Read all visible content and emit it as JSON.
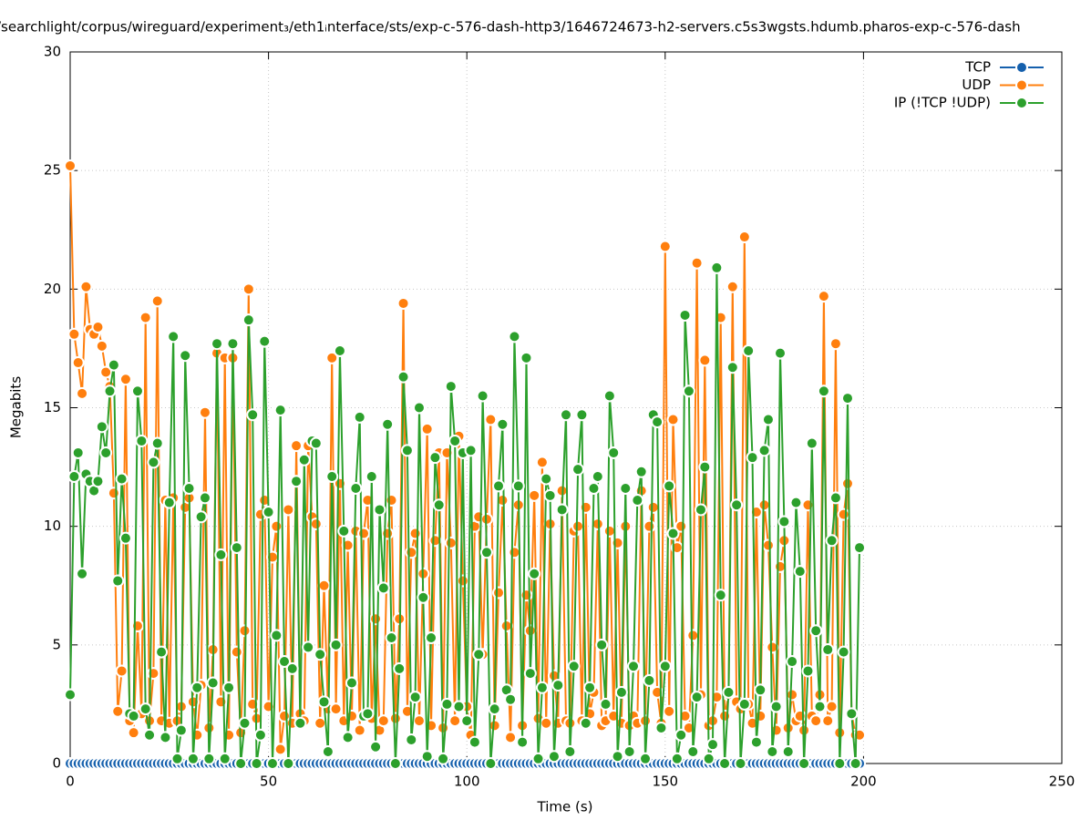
{
  "chart_data": {
    "type": "line",
    "title": "/searchlight/corpus/wireguard/experiment₃/eth1ᵢnterface/sts/exp-c-576-dash-http3/1646724673-h2-servers.c5s3wgsts.hdumb.pharos-exp-c-576-dash",
    "x_label": "Time (s)",
    "y_label": "Megabits",
    "xlim": [
      0,
      250
    ],
    "xticks": [
      0,
      50,
      100,
      150,
      200,
      250
    ],
    "ylim": [
      0,
      30
    ],
    "yticks": [
      0,
      5,
      10,
      15,
      20,
      25,
      30
    ],
    "grid": true,
    "legend": "top-right",
    "x": [
      0,
      1,
      2,
      3,
      4,
      5,
      6,
      7,
      8,
      9,
      10,
      11,
      12,
      13,
      14,
      15,
      16,
      17,
      18,
      19,
      20,
      21,
      22,
      23,
      24,
      25,
      26,
      27,
      28,
      29,
      30,
      31,
      32,
      33,
      34,
      35,
      36,
      37,
      38,
      39,
      40,
      41,
      42,
      43,
      44,
      45,
      46,
      47,
      48,
      49,
      50,
      51,
      52,
      53,
      54,
      55,
      56,
      57,
      58,
      59,
      60,
      61,
      62,
      63,
      64,
      65,
      66,
      67,
      68,
      69,
      70,
      71,
      72,
      73,
      74,
      75,
      76,
      77,
      78,
      79,
      80,
      81,
      82,
      83,
      84,
      85,
      86,
      87,
      88,
      89,
      90,
      91,
      92,
      93,
      94,
      95,
      96,
      97,
      98,
      99,
      100,
      101,
      102,
      103,
      104,
      105,
      106,
      107,
      108,
      109,
      110,
      111,
      112,
      113,
      114,
      115,
      116,
      117,
      118,
      119,
      120,
      121,
      122,
      123,
      124,
      125,
      126,
      127,
      128,
      129,
      130,
      131,
      132,
      133,
      134,
      135,
      136,
      137,
      138,
      139,
      140,
      141,
      142,
      143,
      144,
      145,
      146,
      147,
      148,
      149,
      150,
      151,
      152,
      153,
      154,
      155,
      156,
      157,
      158,
      159,
      160,
      161,
      162,
      163,
      164,
      165,
      166,
      167,
      168,
      169,
      170,
      171,
      172,
      173,
      174,
      175,
      176,
      177,
      178,
      179,
      180,
      181,
      182,
      183,
      184,
      185,
      186,
      187,
      188,
      189,
      190,
      191,
      192,
      193,
      194,
      195,
      196,
      197,
      198,
      199
    ],
    "series": [
      {
        "name": "TCP",
        "color": "#1560ad",
        "values": [
          0,
          0,
          0,
          0,
          0,
          0,
          0,
          0,
          0,
          0,
          0,
          0,
          0,
          0,
          0,
          0,
          0,
          0,
          0,
          0,
          0,
          0,
          0,
          0,
          0,
          0,
          0,
          0,
          0,
          0,
          0,
          0,
          0,
          0,
          0,
          0,
          0,
          0,
          0,
          0,
          0,
          0,
          0,
          0,
          0,
          0,
          0,
          0,
          0,
          0,
          0,
          0,
          0,
          0,
          0,
          0,
          0,
          0,
          0,
          0,
          0,
          0,
          0,
          0,
          0,
          0,
          0,
          0,
          0,
          0,
          0,
          0,
          0,
          0,
          0,
          0,
          0,
          0,
          0,
          0,
          0,
          0,
          0,
          0,
          0,
          0,
          0,
          0,
          0,
          0,
          0,
          0,
          0,
          0,
          0,
          0,
          0,
          0,
          0,
          0,
          0,
          0,
          0,
          0,
          0,
          0,
          0,
          0,
          0,
          0,
          0,
          0,
          0,
          0,
          0,
          0,
          0,
          0,
          0,
          0,
          0,
          0,
          0,
          0,
          0,
          0,
          0,
          0,
          0,
          0,
          0,
          0,
          0,
          0,
          0,
          0,
          0,
          0,
          0,
          0,
          0,
          0,
          0,
          0,
          0,
          0,
          0,
          0,
          0,
          0,
          0,
          0,
          0,
          0,
          0,
          0,
          0,
          0,
          0,
          0,
          0,
          0,
          0,
          0,
          0,
          0,
          0,
          0,
          0,
          0,
          0,
          0,
          0,
          0,
          0,
          0,
          0,
          0,
          0,
          0,
          0,
          0,
          0,
          0,
          0,
          0,
          0,
          0,
          0,
          0,
          0,
          0,
          0,
          0,
          0,
          0,
          0,
          0,
          0,
          0
        ]
      },
      {
        "name": "UDP",
        "color": "#ff7f0e",
        "values": [
          25.2,
          18.1,
          16.9,
          15.6,
          20.1,
          18.3,
          18.1,
          18.4,
          17.6,
          16.5,
          15.9,
          11.4,
          2.2,
          3.9,
          16.2,
          1.8,
          1.3,
          5.8,
          2.1,
          18.8,
          1.8,
          3.8,
          19.5,
          1.8,
          11.1,
          1.7,
          11.2,
          1.8,
          2.4,
          10.8,
          11.2,
          2.6,
          1.2,
          3.3,
          14.8,
          1.5,
          4.8,
          17.3,
          2.6,
          17.1,
          1.2,
          17.1,
          4.7,
          1.3,
          5.6,
          20.0,
          2.5,
          1.9,
          10.5,
          11.1,
          2.4,
          8.7,
          10.0,
          0.6,
          2.0,
          10.7,
          1.7,
          13.4,
          2.1,
          1.8,
          13.4,
          10.4,
          10.1,
          1.7,
          7.5,
          2.3,
          17.1,
          2.3,
          11.8,
          1.8,
          9.2,
          2.0,
          9.8,
          1.4,
          9.7,
          11.1,
          1.9,
          6.1,
          1.4,
          1.8,
          9.7,
          11.1,
          1.9,
          6.1,
          19.4,
          2.2,
          8.9,
          9.7,
          1.8,
          8.0,
          14.1,
          1.6,
          9.4,
          13.1,
          1.5,
          13.1,
          9.3,
          1.8,
          13.8,
          7.7,
          2.4,
          1.2,
          10.0,
          10.4,
          4.6,
          10.3,
          14.5,
          1.6,
          7.2,
          11.1,
          5.8,
          1.1,
          8.9,
          10.9,
          1.6,
          7.1,
          5.6,
          11.3,
          1.9,
          12.7,
          1.7,
          10.1,
          3.7,
          1.7,
          11.5,
          1.8,
          1.7,
          9.8,
          10.0,
          1.8,
          10.8,
          2.1,
          3.0,
          10.1,
          1.6,
          1.8,
          9.8,
          2.0,
          9.3,
          1.7,
          10.0,
          1.6,
          2.0,
          1.7,
          11.5,
          1.8,
          10.0,
          10.8,
          3.0,
          1.7,
          21.8,
          2.2,
          14.5,
          9.1,
          10.0,
          2.0,
          1.5,
          5.4,
          21.1,
          2.9,
          17.0,
          1.6,
          1.8,
          2.8,
          18.8,
          2.0,
          2.9,
          20.1,
          2.6,
          2.3,
          22.2,
          2.5,
          1.7,
          10.6,
          2.0,
          10.9,
          9.2,
          4.9,
          1.4,
          8.3,
          9.4,
          1.5,
          2.9,
          1.8,
          2.0,
          1.4,
          10.9,
          2.0,
          1.8,
          2.9,
          19.7,
          1.8,
          2.4,
          17.7,
          1.3,
          10.5,
          11.8,
          2.1,
          1.2,
          1.2
        ]
      },
      {
        "name": "IP (!TCP  !UDP)",
        "color": "#2ca02c",
        "values": [
          2.9,
          12.1,
          13.1,
          8.0,
          12.2,
          11.9,
          11.5,
          11.9,
          14.2,
          13.1,
          15.7,
          16.8,
          7.7,
          12.0,
          9.5,
          2.1,
          2.0,
          15.7,
          13.6,
          2.3,
          1.2,
          12.7,
          13.5,
          4.7,
          1.1,
          11.0,
          18.0,
          0.2,
          1.4,
          17.2,
          11.6,
          0.2,
          3.2,
          10.4,
          11.2,
          0.2,
          3.4,
          17.7,
          8.8,
          0.2,
          3.2,
          17.7,
          9.1,
          0.0,
          1.7,
          18.7,
          14.7,
          0.0,
          1.2,
          17.8,
          10.6,
          0.0,
          5.4,
          14.9,
          4.3,
          0.0,
          4.0,
          11.9,
          1.7,
          12.8,
          4.9,
          13.6,
          13.5,
          4.6,
          2.6,
          0.5,
          12.1,
          5.0,
          17.4,
          9.8,
          1.1,
          3.4,
          11.6,
          14.6,
          2.0,
          2.1,
          12.1,
          0.7,
          10.7,
          7.4,
          14.3,
          5.3,
          0.0,
          4.0,
          16.3,
          13.2,
          1.0,
          2.8,
          15.0,
          7.0,
          0.3,
          5.3,
          12.9,
          10.9,
          0.2,
          2.5,
          15.9,
          13.6,
          2.4,
          13.1,
          1.8,
          13.2,
          0.9,
          4.6,
          15.5,
          8.9,
          0.0,
          2.3,
          11.7,
          14.3,
          3.1,
          2.7,
          18.0,
          11.7,
          0.9,
          17.1,
          3.8,
          8.0,
          0.2,
          3.2,
          12.0,
          11.3,
          0.3,
          3.3,
          10.7,
          14.7,
          0.5,
          4.1,
          12.4,
          14.7,
          1.7,
          3.2,
          11.6,
          12.1,
          5.0,
          2.5,
          15.5,
          13.1,
          0.3,
          3.0,
          11.6,
          0.5,
          4.1,
          11.1,
          12.3,
          0.2,
          3.5,
          14.7,
          14.4,
          1.5,
          4.1,
          11.7,
          9.7,
          0.2,
          1.2,
          18.9,
          15.7,
          0.5,
          2.8,
          10.7,
          12.5,
          0.2,
          0.8,
          20.9,
          7.1,
          0.0,
          3.0,
          16.7,
          10.9,
          0.0,
          2.5,
          17.4,
          12.9,
          0.9,
          3.1,
          13.2,
          14.5,
          0.5,
          2.4,
          17.3,
          10.2,
          0.5,
          4.3,
          11.0,
          8.1,
          0.0,
          3.9,
          13.5,
          5.6,
          2.4,
          15.7,
          4.8,
          9.4,
          11.2,
          0.0,
          4.7,
          15.4,
          2.1,
          0.0,
          9.1
        ]
      }
    ]
  }
}
